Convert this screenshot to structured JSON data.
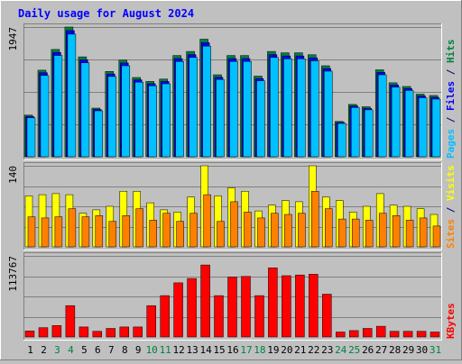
{
  "chart_data": {
    "type": "bar",
    "title": "Daily usage for August 2024",
    "categories": [
      "1",
      "2",
      "3",
      "4",
      "5",
      "6",
      "7",
      "8",
      "9",
      "10",
      "11",
      "12",
      "13",
      "14",
      "15",
      "16",
      "17",
      "18",
      "19",
      "20",
      "21",
      "22",
      "23",
      "24",
      "25",
      "26",
      "27",
      "28",
      "29",
      "30",
      "31"
    ],
    "weekend_days": [
      "3",
      "4",
      "10",
      "11",
      "17",
      "18",
      "24",
      "25",
      "31"
    ],
    "panels": [
      {
        "id": "hits-files-pages",
        "ylim": [
          0,
          1947
        ],
        "tick_label": "1947",
        "side_labels": [
          {
            "text": "Pages",
            "color": "#00c0ff"
          },
          {
            "text": " / ",
            "color": "#000080"
          },
          {
            "text": "Files",
            "color": "#0000ff"
          },
          {
            "text": " / ",
            "color": "#000080"
          },
          {
            "text": "Hits",
            "color": "#008040"
          }
        ],
        "series": [
          {
            "name": "Hits",
            "color": "#008040",
            "values": [
              625,
              1300,
              1610,
              1947,
              1500,
              730,
              1280,
              1450,
              1190,
              1130,
              1165,
              1520,
              1580,
              1765,
              1230,
              1520,
              1520,
              1210,
              1580,
              1560,
              1560,
              1530,
              1365,
              530,
              785,
              750,
              1305,
              1110,
              1055,
              940,
              920
            ]
          },
          {
            "name": "Files",
            "color": "#0000ff",
            "values": [
              606,
              1261,
              1566,
              1894,
              1455,
              710,
              1242,
              1407,
              1155,
              1096,
              1130,
              1474,
              1533,
              1712,
              1193,
              1474,
              1474,
              1174,
              1533,
              1513,
              1513,
              1484,
              1324,
              515,
              761,
              728,
              1266,
              1077,
              1023,
              912,
              892
            ]
          },
          {
            "name": "Pages",
            "color": "#00c0ff",
            "values": [
              585,
              1220,
              1520,
              1840,
              1410,
              690,
              1205,
              1365,
              1120,
              1065,
              1095,
              1430,
              1490,
              1660,
              1160,
              1430,
              1430,
              1140,
              1490,
              1470,
              1470,
              1440,
              1285,
              500,
              740,
              705,
              1230,
              1045,
              995,
              885,
              865
            ]
          }
        ]
      },
      {
        "id": "visits-sites",
        "ylim": [
          0,
          140
        ],
        "tick_label": "140",
        "side_labels": [
          {
            "text": "Sites",
            "color": "#ff8000"
          },
          {
            "text": " / ",
            "color": "#000080"
          },
          {
            "text": "Visits",
            "color": "#ffff00"
          }
        ],
        "series": [
          {
            "name": "Visits",
            "color": "#ffff00",
            "values": [
              88,
              90,
              92,
              90,
              58,
              64,
              70,
              96,
              96,
              76,
              64,
              60,
              86,
              140,
              88,
              102,
              96,
              62,
              72,
              80,
              78,
              140,
              86,
              80,
              60,
              70,
              92,
              72,
              70,
              66,
              56
            ]
          },
          {
            "name": "Sites",
            "color": "#ff8000",
            "values": [
              52,
              50,
              52,
              66,
              52,
              54,
              44,
              54,
              66,
              46,
              58,
              44,
              58,
              90,
              44,
              78,
              60,
              50,
              58,
              56,
              58,
              96,
              66,
              48,
              48,
              46,
              58,
              54,
              46,
              50,
              36
            ]
          }
        ]
      },
      {
        "id": "kbytes",
        "ylim": [
          0,
          113767
        ],
        "tick_label": "113767",
        "side_labels": [
          {
            "text": "KBytes",
            "color": "#ff0000"
          }
        ],
        "series": [
          {
            "name": "KBytes",
            "color": "#ff0000",
            "values": [
              8500,
              13000,
              16000,
              44000,
              14000,
              8000,
              12000,
              14000,
              14000,
              44000,
              58000,
              76000,
              82000,
              101000,
              58000,
              84000,
              85000,
              58000,
              97000,
              86000,
              87000,
              88000,
              60000,
              7000,
              9000,
              12000,
              15000,
              8000,
              8000,
              8000,
              7000
            ]
          }
        ]
      }
    ]
  }
}
